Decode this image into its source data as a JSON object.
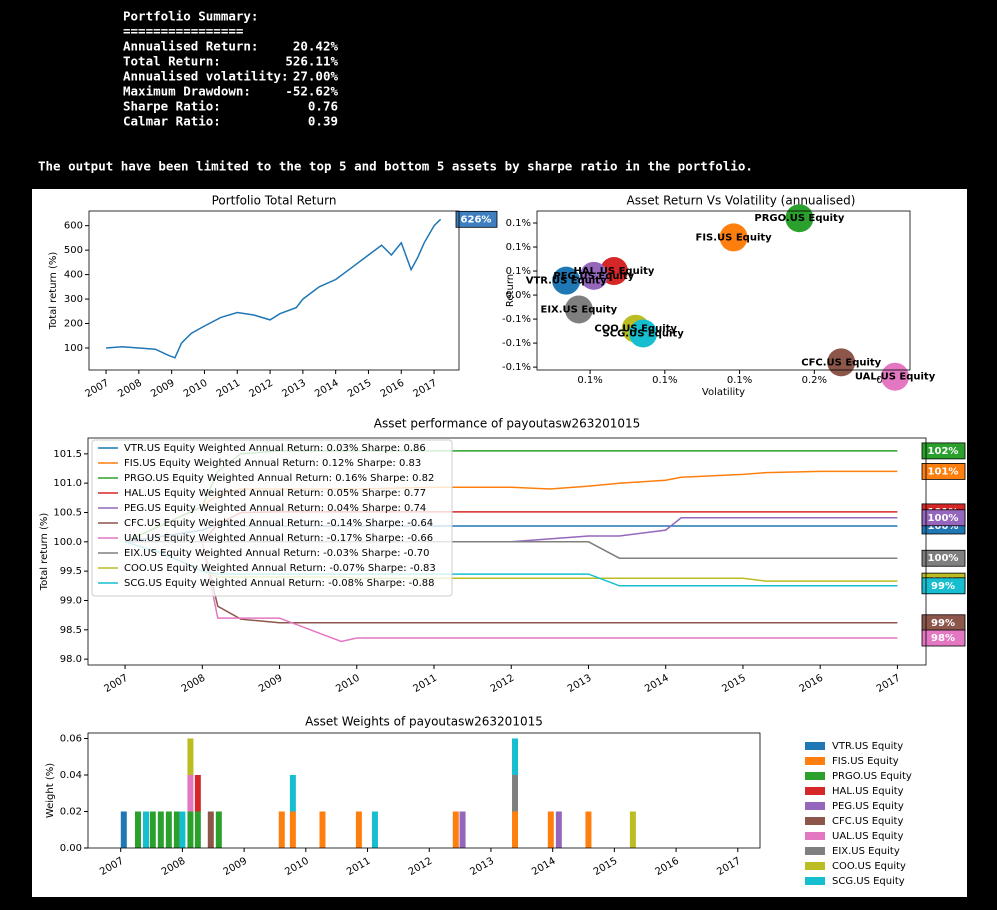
{
  "summary": {
    "title": "Portfolio Summary:",
    "rule": "================",
    "rows": [
      [
        "Annualised Return:",
        "20.42%"
      ],
      [
        "Total Return:",
        "526.11%"
      ],
      [
        "Annualised volatility:",
        "27.00%"
      ],
      [
        "Maximum Drawdown:",
        "-52.62%"
      ],
      [
        "Sharpe Ratio:",
        "0.76"
      ],
      [
        "Calmar Ratio:",
        "0.39"
      ]
    ]
  },
  "note": "The output have been limited to the top 5 and bottom 5 assets by sharpe ratio in the portfolio.",
  "chart_data": [
    {
      "type": "line",
      "title": "Portfolio Total Return",
      "y_label": "Total return (%)",
      "x": [
        2007,
        2007.5,
        2008,
        2008.5,
        2008.9,
        2009.1,
        2009.3,
        2009.6,
        2010,
        2010.5,
        2011,
        2011.5,
        2012,
        2012.3,
        2012.8,
        2013,
        2013.5,
        2014,
        2014.5,
        2015,
        2015.4,
        2015.7,
        2016,
        2016.3,
        2016.5,
        2016.7,
        2017.0,
        2017.2
      ],
      "series": [
        {
          "color": "#1f77b4",
          "values": [
            100,
            105,
            100,
            95,
            70,
            60,
            120,
            160,
            190,
            225,
            245,
            235,
            215,
            240,
            265,
            300,
            350,
            380,
            430,
            480,
            520,
            480,
            530,
            420,
            470,
            530,
            600,
            626
          ]
        }
      ],
      "annotation": {
        "text": "626%",
        "color": "#3f7fbf"
      },
      "xlim": [
        2006.48,
        2017.76
      ],
      "xticks": [
        2007,
        2008,
        2009,
        2010,
        2011,
        2012,
        2013,
        2014,
        2015,
        2016,
        2017
      ],
      "ylim": [
        10,
        660
      ],
      "yticks": [
        100,
        200,
        300,
        400,
        500,
        600
      ]
    },
    {
      "type": "scatter",
      "title": "Asset Return Vs Volatility (annualised)",
      "x_label": "Volatility",
      "y_label": "Return",
      "categories": [
        "VTR.US Equity",
        "FIS.US Equity",
        "PRGO.US Equity",
        "HAL.US Equity",
        "PEG.US Equity",
        "CFC.US Equity",
        "UAL.US Equity",
        "EIX.US Equity",
        "COO.US Equity",
        "SCG.US Equity"
      ],
      "x": [
        0.1168,
        0.1392,
        0.148,
        0.1232,
        0.1205,
        0.1536,
        0.1608,
        0.1185,
        0.1261,
        0.1271
      ],
      "values": [
        0.03,
        0.12,
        0.16,
        0.05,
        0.04,
        -0.14,
        -0.17,
        -0.03,
        -0.07,
        -0.08
      ],
      "colors": [
        "#1f77b4",
        "#ff7f0e",
        "#2ca02c",
        "#d62728",
        "#9467bd",
        "#8c564b",
        "#e377c2",
        "#7f7f7f",
        "#bcbd22",
        "#17becf"
      ],
      "xlim": [
        0.1129,
        0.1628
      ],
      "xticks": [
        {
          "value": 0.12,
          "label": "0.1%"
        },
        {
          "value": 0.13,
          "label": "0.1%"
        },
        {
          "value": 0.14,
          "label": "0.1%"
        },
        {
          "value": 0.15,
          "label": "0.2%"
        },
        {
          "value": 0.16,
          "label": "0.2%"
        }
      ],
      "ylim": [
        -0.156,
        0.175
      ],
      "yticks": [
        {
          "value": -0.15,
          "label": "-0.1%"
        },
        {
          "value": -0.1,
          "label": "-0.1%"
        },
        {
          "value": -0.05,
          "label": "-0.1%"
        },
        {
          "value": 0,
          "label": "0.0%"
        },
        {
          "value": 0.05,
          "label": "0.1%"
        },
        {
          "value": 0.1,
          "label": "0.1%"
        },
        {
          "value": 0.15,
          "label": "0.1%"
        }
      ]
    },
    {
      "type": "line",
      "title": "Asset performance of payoutasw263201015",
      "y_label": "Total return (%)",
      "legend": "upper left",
      "x": [
        2007.0,
        2007.5,
        2008.0,
        2008.2,
        2008.5,
        2009.0,
        2009.8,
        2010.0,
        2011.0,
        2012.0,
        2012.5,
        2013.0,
        2013.4,
        2014.0,
        2014.2,
        2015.0,
        2015.3,
        2016.0,
        2017.0
      ],
      "series": [
        {
          "name": "VTR.US Equity Weighted Annual Return: 0.03%  Sharpe: 0.86",
          "color": "#1f77b4",
          "end_label": "100%",
          "values": [
            100,
            100.1,
            100.2,
            100.3,
            100.27,
            100.27,
            100.27,
            100.27,
            100.27,
            100.27,
            100.27,
            100.27,
            100.27,
            100.27,
            100.27,
            100.27,
            100.27,
            100.27,
            100.27
          ]
        },
        {
          "name": "FIS.US Equity Weighted Annual Return: 0.12%  Sharpe: 0.83",
          "color": "#ff7f0e",
          "end_label": "101%",
          "values": [
            100,
            100.3,
            100.6,
            100.8,
            100.9,
            100.9,
            100.9,
            100.9,
            100.93,
            100.93,
            100.9,
            100.95,
            101.0,
            101.05,
            101.1,
            101.15,
            101.18,
            101.2,
            101.2
          ]
        },
        {
          "name": "PRGO.US Equity Weighted Annual Return: 0.16%  Sharpe: 0.82",
          "color": "#2ca02c",
          "end_label": "102%",
          "values": [
            100,
            100.3,
            100.6,
            101.2,
            101.5,
            101.55,
            101.55,
            101.55,
            101.55,
            101.55,
            101.55,
            101.55,
            101.55,
            101.55,
            101.55,
            101.55,
            101.55,
            101.55,
            101.55
          ]
        },
        {
          "name": "HAL.US Equity Weighted Annual Return: 0.05%  Sharpe: 0.77",
          "color": "#d62728",
          "end_label": "101%",
          "values": [
            100,
            100,
            100,
            100.3,
            100.5,
            100.51,
            100.51,
            100.51,
            100.51,
            100.51,
            100.51,
            100.51,
            100.51,
            100.51,
            100.51,
            100.51,
            100.51,
            100.51,
            100.51
          ]
        },
        {
          "name": "PEG.US Equity Weighted Annual Return: 0.04%  Sharpe: 0.74",
          "color": "#9467bd",
          "end_label": "100%",
          "values": [
            100,
            100,
            100,
            100,
            100,
            100,
            100,
            100,
            100,
            100,
            100.05,
            100.1,
            100.1,
            100.2,
            100.41,
            100.41,
            100.41,
            100.41,
            100.41
          ]
        },
        {
          "name": "CFC.US Equity Weighted Annual Return: -0.14%  Sharpe: -0.64",
          "color": "#8c564b",
          "end_label": "99%",
          "values": [
            100,
            100,
            100,
            98.9,
            98.68,
            98.62,
            98.62,
            98.62,
            98.62,
            98.62,
            98.62,
            98.62,
            98.62,
            98.62,
            98.62,
            98.62,
            98.62,
            98.62,
            98.62
          ]
        },
        {
          "name": "UAL.US Equity Weighted Annual Return: -0.17%  Sharpe: -0.66",
          "color": "#e377c2",
          "end_label": "98%",
          "values": [
            100,
            100,
            100,
            98.7,
            98.7,
            98.7,
            98.3,
            98.36,
            98.36,
            98.36,
            98.36,
            98.36,
            98.36,
            98.36,
            98.36,
            98.36,
            98.36,
            98.36,
            98.36
          ]
        },
        {
          "name": "EIX.US Equity Weighted Annual Return: -0.03%  Sharpe: -0.70",
          "color": "#7f7f7f",
          "end_label": "100%",
          "values": [
            100,
            100,
            100,
            100,
            100,
            100,
            100,
            100,
            100,
            100,
            100,
            100,
            99.72,
            99.72,
            99.72,
            99.72,
            99.72,
            99.72,
            99.72
          ]
        },
        {
          "name": "COO.US Equity Weighted Annual Return: -0.07%  Sharpe: -0.83",
          "color": "#bcbd22",
          "end_label": "99%",
          "values": [
            100,
            99.8,
            99.5,
            99.4,
            99.4,
            99.4,
            99.4,
            99.38,
            99.38,
            99.38,
            99.38,
            99.38,
            99.38,
            99.38,
            99.38,
            99.38,
            99.33,
            99.33,
            99.33
          ]
        },
        {
          "name": "SCG.US Equity Weighted Annual Return: -0.08%  Sharpe: -0.88",
          "color": "#17becf",
          "end_label": "99%",
          "values": [
            100,
            99.8,
            99.5,
            99.45,
            99.45,
            99.45,
            99.45,
            99.45,
            99.45,
            99.45,
            99.45,
            99.45,
            99.25,
            99.25,
            99.25,
            99.25,
            99.25,
            99.25,
            99.25
          ]
        }
      ],
      "xlim": [
        2006.52,
        2017.37
      ],
      "xticks": [
        2007,
        2008,
        2009,
        2010,
        2011,
        2012,
        2013,
        2014,
        2015,
        2016,
        2017
      ],
      "ylim": [
        97.9,
        101.77
      ],
      "yticks": [
        {
          "value": 98,
          "label": "98.0"
        },
        98.5,
        {
          "value": 99,
          "label": "99.0"
        },
        99.5,
        {
          "value": 100,
          "label": "100.0"
        },
        100.5,
        {
          "value": 101,
          "label": "101.0"
        },
        101.5
      ]
    },
    {
      "type": "bar",
      "stacked": true,
      "title": "Asset Weights of payoutasw263201015",
      "y_label": "Weight (%)",
      "legend": "right",
      "x": [
        2007.05,
        2007.28,
        2007.41,
        2007.52,
        2007.65,
        2007.78,
        2007.91,
        2008.0,
        2008.13,
        2008.25,
        2008.46,
        2008.59,
        2009.61,
        2009.79,
        2010.27,
        2010.86,
        2011.12,
        2012.43,
        2012.54,
        2013.39,
        2013.97,
        2014.1,
        2014.58,
        2015.3
      ],
      "series": [
        {
          "name": "VTR.US Equity",
          "color": "#1f77b4",
          "values": [
            0.02,
            0,
            0,
            0,
            0,
            0,
            0,
            0,
            0,
            0,
            0,
            0,
            0,
            0,
            0,
            0,
            0,
            0,
            0,
            0,
            0,
            0,
            0,
            0
          ]
        },
        {
          "name": "FIS.US Equity",
          "color": "#ff7f0e",
          "values": [
            0,
            0,
            0,
            0,
            0,
            0,
            0,
            0,
            0,
            0,
            0,
            0,
            0.02,
            0.02,
            0.02,
            0.02,
            0,
            0.02,
            0,
            0.02,
            0.02,
            0,
            0.02,
            0
          ]
        },
        {
          "name": "PRGO.US Equity",
          "color": "#2ca02c",
          "values": [
            0,
            0.02,
            0,
            0.02,
            0.02,
            0.02,
            0.02,
            0,
            0.02,
            0.02,
            0,
            0.02,
            0,
            0,
            0,
            0,
            0,
            0,
            0,
            0,
            0,
            0,
            0,
            0
          ]
        },
        {
          "name": "HAL.US Equity",
          "color": "#d62728",
          "values": [
            0,
            0,
            0,
            0,
            0,
            0,
            0,
            0,
            0,
            0.02,
            0,
            0,
            0,
            0,
            0,
            0,
            0,
            0,
            0,
            0,
            0,
            0,
            0,
            0
          ]
        },
        {
          "name": "PEG.US Equity",
          "color": "#9467bd",
          "values": [
            0,
            0,
            0,
            0,
            0,
            0,
            0,
            0,
            0,
            0,
            0,
            0,
            0,
            0,
            0,
            0,
            0,
            0,
            0.02,
            0,
            0,
            0.02,
            0,
            0
          ]
        },
        {
          "name": "CFC.US Equity",
          "color": "#8c564b",
          "values": [
            0,
            0,
            0,
            0,
            0,
            0,
            0,
            0,
            0,
            0,
            0.02,
            0,
            0,
            0,
            0,
            0,
            0,
            0,
            0,
            0,
            0,
            0,
            0,
            0
          ]
        },
        {
          "name": "UAL.US Equity",
          "color": "#e377c2",
          "values": [
            0,
            0,
            0,
            0,
            0,
            0,
            0,
            0,
            0.02,
            0,
            0,
            0,
            0,
            0,
            0,
            0,
            0,
            0,
            0,
            0,
            0,
            0,
            0,
            0
          ]
        },
        {
          "name": "EIX.US Equity",
          "color": "#7f7f7f",
          "values": [
            0,
            0,
            0,
            0,
            0,
            0,
            0,
            0,
            0,
            0,
            0,
            0,
            0,
            0,
            0,
            0,
            0,
            0,
            0,
            0.02,
            0,
            0,
            0,
            0
          ]
        },
        {
          "name": "COO.US Equity",
          "color": "#bcbd22",
          "values": [
            0,
            0,
            0,
            0,
            0,
            0,
            0,
            0,
            0.02,
            0,
            0,
            0,
            0,
            0,
            0,
            0,
            0,
            0,
            0,
            0,
            0,
            0,
            0,
            0.02
          ]
        },
        {
          "name": "SCG.US Equity",
          "color": "#17becf",
          "values": [
            0,
            0,
            0.02,
            0,
            0,
            0,
            0,
            0.02,
            0,
            0,
            0,
            0,
            0,
            0.02,
            0,
            0,
            0.02,
            0,
            0,
            0.02,
            0,
            0,
            0,
            0
          ]
        }
      ],
      "xlim": [
        2006.47,
        2017.36
      ],
      "xticks": [
        2007,
        2008,
        2009,
        2010,
        2011,
        2012,
        2013,
        2014,
        2015,
        2016,
        2017
      ],
      "ylim": [
        0,
        0.063
      ],
      "yticks": [
        {
          "value": 0,
          "label": "0.00"
        },
        0.02,
        0.04,
        0.06
      ]
    }
  ]
}
